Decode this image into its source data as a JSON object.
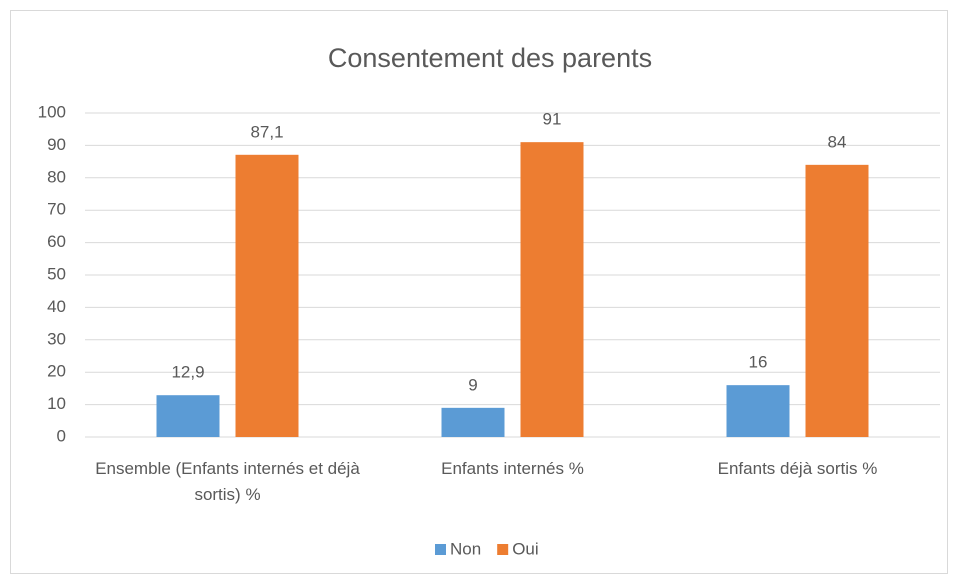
{
  "chart_data": {
    "type": "bar",
    "title": "Consentement des parents",
    "categories": [
      "Ensemble (Enfants internés et déjà sortis) %",
      "Enfants internés %",
      "Enfants déjà sortis %"
    ],
    "series": [
      {
        "name": "Non",
        "color": "#5b9bd5",
        "values": [
          12.9,
          9,
          16
        ],
        "value_labels": [
          "12,9",
          "9",
          "16"
        ]
      },
      {
        "name": "Oui",
        "color": "#ed7d31",
        "values": [
          87.1,
          91,
          84
        ],
        "value_labels": [
          "87,1",
          "91",
          "84"
        ]
      }
    ],
    "ylim": [
      0,
      100
    ],
    "yticks": [
      0,
      10,
      20,
      30,
      40,
      50,
      60,
      70,
      80,
      90,
      100
    ],
    "grid": true,
    "legend": "bottom"
  }
}
